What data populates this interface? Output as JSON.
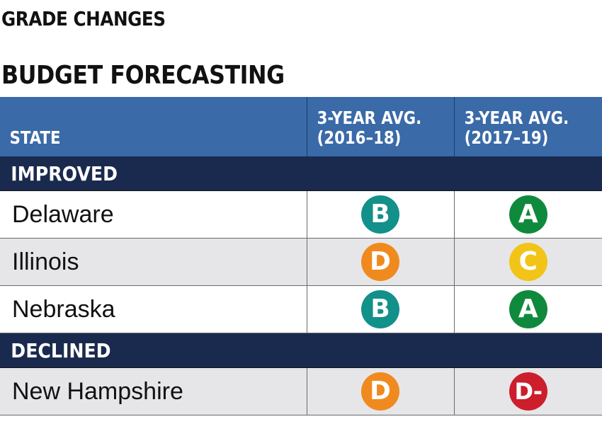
{
  "titles": {
    "line1": "GRADE CHANGES",
    "line2": "BUDGET FORECASTING"
  },
  "table": {
    "headers": {
      "state": "STATE",
      "col1": "3-YEAR AVG.\n(2016–18)",
      "col2": "3-YEAR AVG.\n(2017–19)"
    },
    "sections": [
      {
        "label": "IMPROVED",
        "rows": [
          {
            "state": "Delaware",
            "g1": "B",
            "g2": "A"
          },
          {
            "state": "Illinois",
            "g1": "D",
            "g2": "C"
          },
          {
            "state": "Nebraska",
            "g1": "B",
            "g2": "A"
          }
        ]
      },
      {
        "label": "DECLINED",
        "rows": [
          {
            "state": "New Hampshire",
            "g1": "D",
            "g2": "D-"
          }
        ]
      }
    ]
  },
  "grade_colors": {
    "A": "#0f8a3c",
    "B": "#12908a",
    "C": "#f2c418",
    "D": "#f08a1e",
    "D-": "#cc1f2b"
  }
}
